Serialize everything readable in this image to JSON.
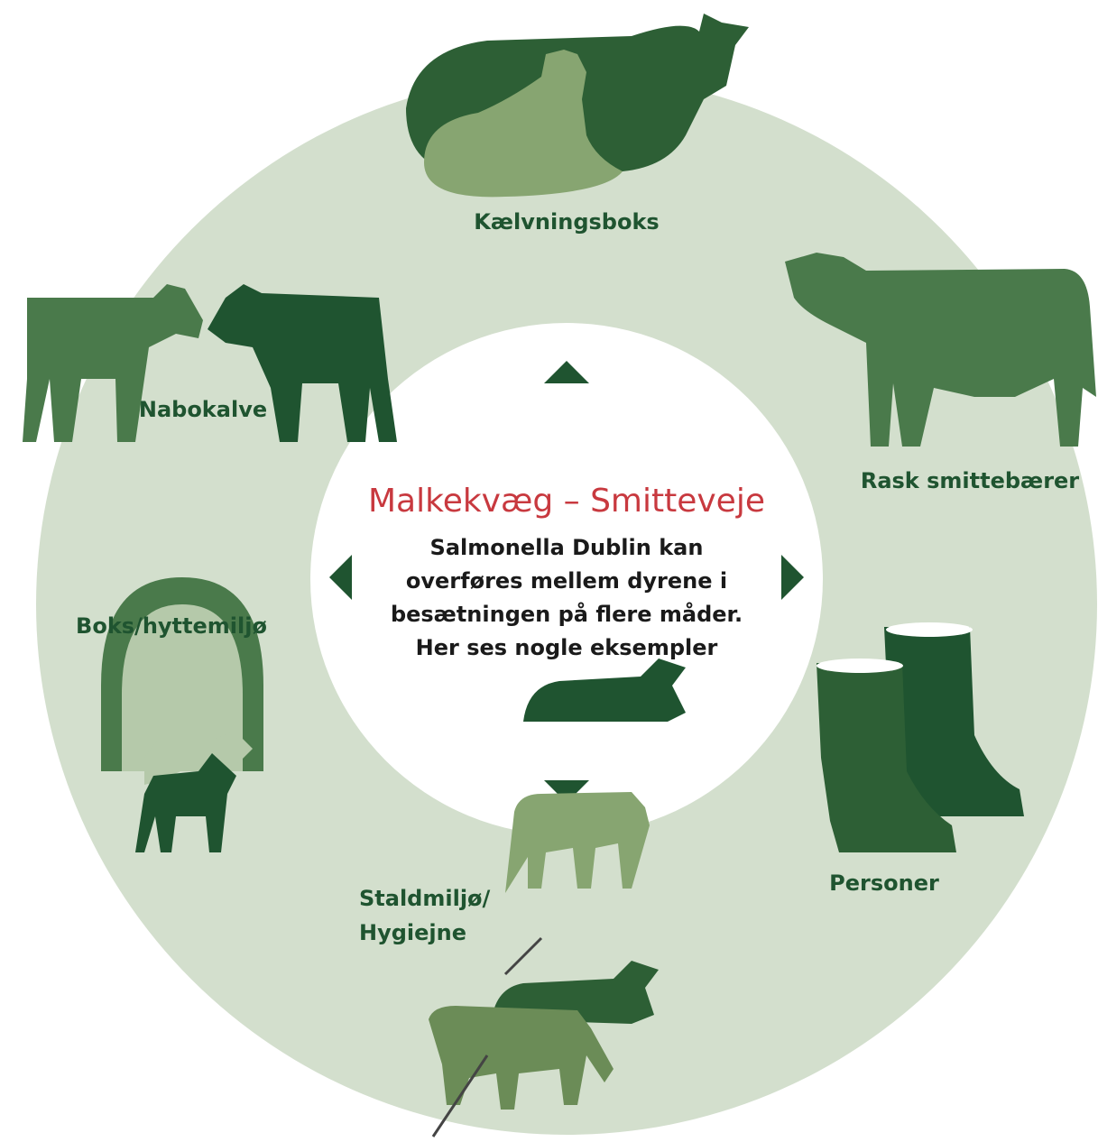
{
  "title": "Malkekvæg – Smitteveje",
  "description": [
    "Salmonella Dublin kan",
    "overføres mellem dyrene i",
    "besætningen på flere måder.",
    "Her ses nogle eksempler"
  ],
  "nodes": [
    {
      "label": "Kælvningsboks"
    },
    {
      "label": "Rask smittebærer"
    },
    {
      "label": "Personer"
    },
    {
      "label": "Staldmiljø/"
    },
    {
      "label": "Hygiejne"
    },
    {
      "label": "Boks/hyttemiljø"
    },
    {
      "label": "Nabokalve"
    }
  ]
}
